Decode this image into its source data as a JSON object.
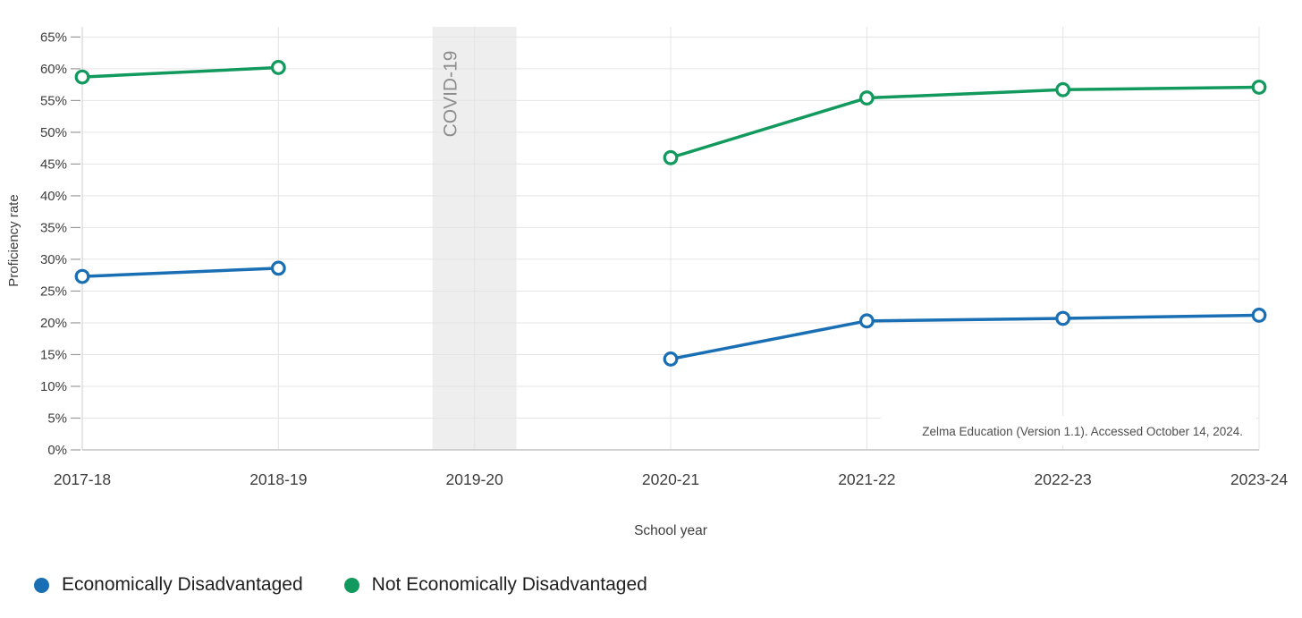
{
  "chart_data": {
    "type": "line",
    "title": "",
    "xlabel": "School year",
    "ylabel": "Proficiency rate",
    "categories": [
      "2017-18",
      "2018-19",
      "2019-20",
      "2020-21",
      "2021-22",
      "2022-23",
      "2023-24"
    ],
    "ylim": [
      0,
      66.6
    ],
    "y_ticks": [
      0,
      5,
      10,
      15,
      20,
      25,
      30,
      35,
      40,
      45,
      50,
      55,
      60,
      65
    ],
    "y_tick_labels": [
      "0%",
      "5%",
      "10%",
      "15%",
      "20%",
      "25%",
      "30%",
      "35%",
      "40%",
      "45%",
      "50%",
      "55%",
      "60%",
      "65%"
    ],
    "grid": true,
    "legend_position": "bottom-left",
    "marker_style": "open-circle",
    "series": [
      {
        "name": "Economically Disadvantaged",
        "color": "#1a6fb4",
        "values": [
          27.3,
          28.6,
          null,
          14.3,
          20.3,
          20.7,
          21.2
        ]
      },
      {
        "name": "Not Economically Disadvantaged",
        "color": "#12995d",
        "values": [
          58.7,
          60.2,
          null,
          46.0,
          55.4,
          56.7,
          57.1
        ]
      }
    ],
    "annotation_band": {
      "label": "COVID-19",
      "category": "2019-20",
      "band_fill": "#eeeeee",
      "label_color": "#8c8c8c"
    },
    "source_note": "Zelma Education (Version 1.1). Accessed October 14, 2024."
  },
  "colors": {
    "background": "#ffffff",
    "grid": "#e4e4e4",
    "axis_line": "#c4c4c4",
    "left_axis_line": "#cfcfcf",
    "tick_mark": "#9a9a9a",
    "tick_label": "#3d3d3d",
    "axis_title": "#3d3d3d",
    "source_note_text": "#4d4d4d",
    "legend_text": "#1f1f1f"
  }
}
